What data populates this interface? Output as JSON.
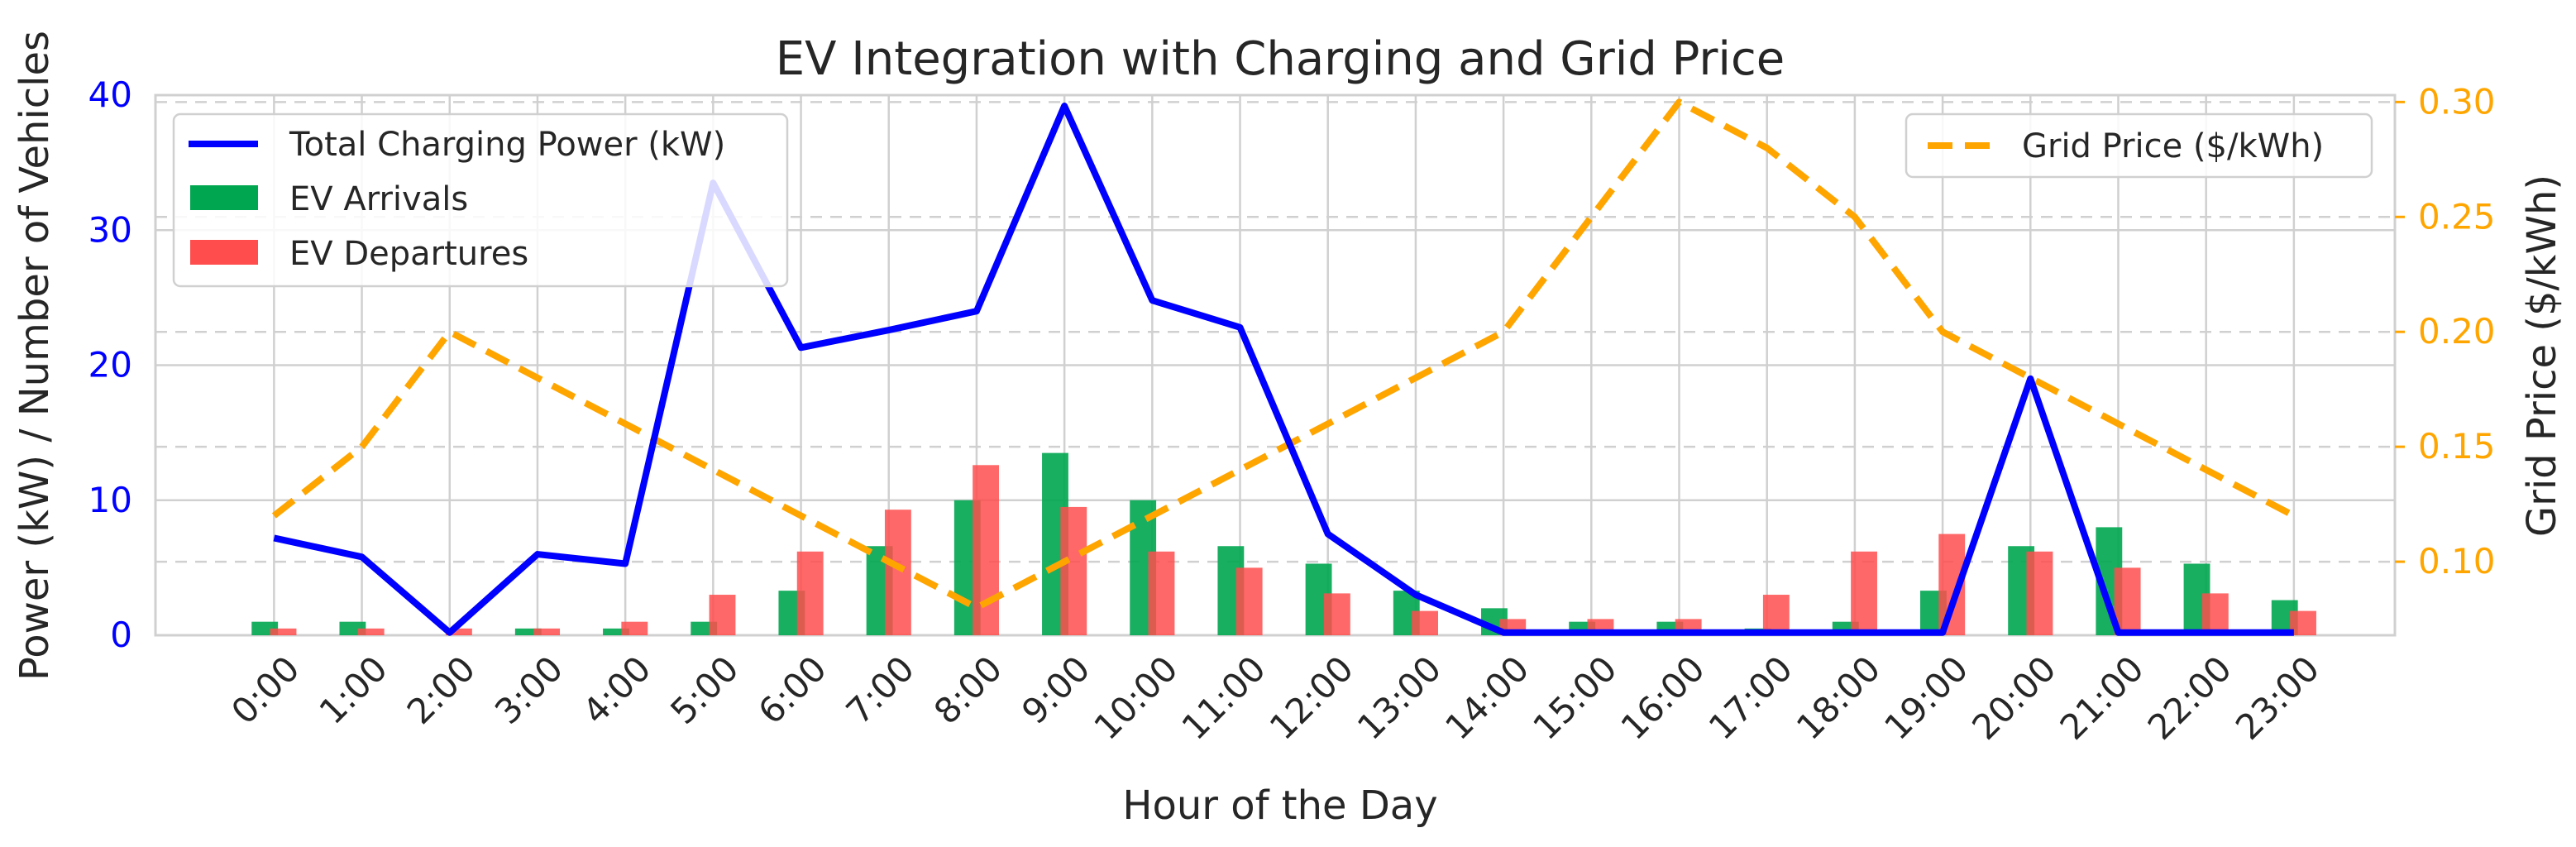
{
  "chart_data": {
    "type": "bar",
    "title": "EV Integration with Charging and Grid Price",
    "xlabel": "Hour of the Day",
    "ylabel_left": "Power (kW) / Number of Vehicles",
    "ylabel_right": "Grid Price ($/kWh)",
    "categories": [
      "0:00",
      "1:00",
      "2:00",
      "3:00",
      "4:00",
      "5:00",
      "6:00",
      "7:00",
      "8:00",
      "9:00",
      "10:00",
      "11:00",
      "12:00",
      "13:00",
      "14:00",
      "15:00",
      "16:00",
      "17:00",
      "18:00",
      "19:00",
      "20:00",
      "21:00",
      "22:00",
      "23:00"
    ],
    "ylim_left": [
      0,
      40
    ],
    "yticks_left": [
      0,
      10,
      20,
      30,
      40
    ],
    "ylim_right": [
      0.068,
      0.303
    ],
    "yticks_right": [
      0.1,
      0.15,
      0.2,
      0.25,
      0.3
    ],
    "grid": true,
    "series": [
      {
        "name": "Total Charging Power (kW)",
        "kind": "line",
        "axis": "left",
        "color": "#0000ff",
        "values": [
          7.2,
          5.8,
          0.2,
          6.0,
          5.3,
          33.5,
          21.3,
          22.6,
          24.0,
          39.2,
          24.8,
          22.8,
          7.5,
          3.0,
          0.2,
          0.2,
          0.2,
          0.2,
          0.2,
          0.2,
          19.0,
          0.2,
          0.2,
          0.2
        ]
      },
      {
        "name": "EV Arrivals",
        "kind": "bar",
        "axis": "left",
        "color": "#00a650",
        "values": [
          1,
          1,
          0,
          0.5,
          0.5,
          1,
          3.3,
          6.6,
          10,
          13.5,
          10,
          6.6,
          5.3,
          3.3,
          2,
          1,
          1,
          0.5,
          1,
          3.3,
          6.6,
          8,
          5.3,
          2.6
        ]
      },
      {
        "name": "EV Departures",
        "kind": "bar",
        "axis": "left",
        "color": "#ff4d4d",
        "values": [
          0.5,
          0.5,
          0.5,
          0.5,
          1,
          3,
          6.2,
          9.3,
          12.6,
          9.5,
          6.2,
          5,
          3.1,
          1.8,
          1.2,
          1.2,
          1.2,
          3,
          6.2,
          7.5,
          6.2,
          5,
          3.1,
          1.8
        ]
      },
      {
        "name": "Grid Price ($/kWh)",
        "kind": "line",
        "style": "dashed",
        "axis": "right",
        "color": "#ffa500",
        "values": [
          0.12,
          0.15,
          0.2,
          0.18,
          0.16,
          0.14,
          0.12,
          0.1,
          0.08,
          0.1,
          0.12,
          0.14,
          0.16,
          0.18,
          0.2,
          0.25,
          0.3,
          0.28,
          0.25,
          0.2,
          0.18,
          0.16,
          0.14,
          0.12
        ]
      }
    ],
    "legend_left_placement": "top-left",
    "legend_right_placement": "top-right",
    "colors": {
      "left_axis": "#0000ff",
      "right_axis": "#ffa500",
      "grid": "#d0d0d0",
      "text": "#262626"
    }
  }
}
